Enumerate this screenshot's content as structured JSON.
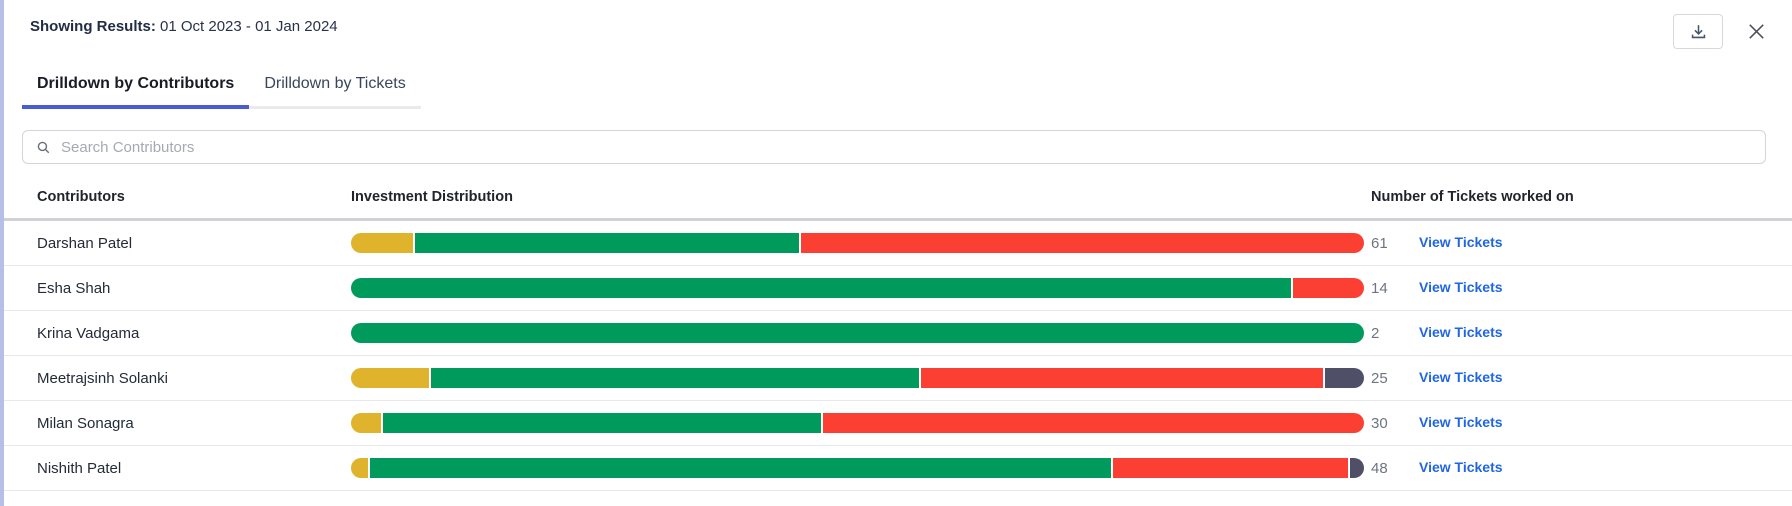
{
  "header": {
    "results_label": "Showing Results:",
    "date_range": "01 Oct 2023 - 01 Jan 2024"
  },
  "icons": {
    "download": "download-icon",
    "close": "close-icon",
    "search": "search-icon"
  },
  "tabs": [
    {
      "label": "Drilldown by Contributors",
      "active": true
    },
    {
      "label": "Drilldown by Tickets",
      "active": false
    }
  ],
  "search": {
    "placeholder": "Search Contributors"
  },
  "table": {
    "columns": [
      "Contributors",
      "Investment Distribution",
      "Number of Tickets worked on"
    ],
    "link_label": "View Tickets",
    "rows": [
      {
        "name": "Darshan Patel",
        "tickets": "61",
        "segments": [
          {
            "color": "yellow",
            "pct": 6.1
          },
          {
            "color": "green",
            "pct": 37.9
          },
          {
            "color": "red",
            "pct": 56.0
          }
        ]
      },
      {
        "name": "Esha Shah",
        "tickets": "14",
        "segments": [
          {
            "color": "green",
            "pct": 92.8
          },
          {
            "color": "red",
            "pct": 7.2
          }
        ]
      },
      {
        "name": "Krina Vadgama",
        "tickets": "2",
        "segments": [
          {
            "color": "green",
            "pct": 100
          }
        ]
      },
      {
        "name": "Meetrajsinh Solanki",
        "tickets": "25",
        "segments": [
          {
            "color": "yellow",
            "pct": 7.7
          },
          {
            "color": "green",
            "pct": 48.2
          },
          {
            "color": "red",
            "pct": 39.7
          },
          {
            "color": "dark",
            "pct": 4.4
          }
        ]
      },
      {
        "name": "Milan Sonagra",
        "tickets": "30",
        "segments": [
          {
            "color": "yellow",
            "pct": 3.0
          },
          {
            "color": "green",
            "pct": 43.2
          },
          {
            "color": "red",
            "pct": 53.8
          }
        ]
      },
      {
        "name": "Nishith Patel",
        "tickets": "48",
        "segments": [
          {
            "color": "yellow",
            "pct": 1.7
          },
          {
            "color": "green",
            "pct": 73.1
          },
          {
            "color": "red",
            "pct": 23.2
          },
          {
            "color": "dark",
            "pct": 2.0
          }
        ]
      }
    ]
  },
  "colors": {
    "accent_blue": "#4a5bd6",
    "link_blue": "#2066e4",
    "bar_yellow": "#e0b32d",
    "bar_green": "#009a5d",
    "bar_red": "#fc3f33",
    "bar_dark": "#4f4f68"
  }
}
